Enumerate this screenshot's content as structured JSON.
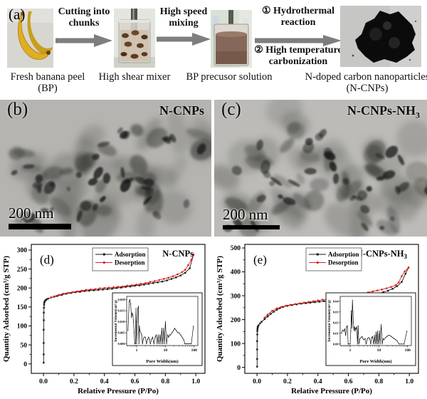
{
  "panel_a": {
    "label": "(a)",
    "arrow_color": "#7e7e7e",
    "steps": [
      {
        "caption": "Fresh banana peel (BP)",
        "image": "banana-photo"
      },
      {
        "caption": "High shear mixer",
        "image": "shear-mixer-photo"
      },
      {
        "caption": "BP precusor solution",
        "image": "precursor-solution-photo"
      },
      {
        "caption": "N-doped carbon nanoparticles (N-CNPs)",
        "image": "carbon-powder-photo"
      }
    ],
    "arrows": [
      {
        "label": "Cutting into chunks"
      },
      {
        "label": "High speed mixing"
      },
      {
        "label_top": "① Hydrothermal reaction",
        "label_bottom": "② High temperature carbonization"
      }
    ]
  },
  "panel_b": {
    "label": "(b)",
    "sample_main": "N-CNPs",
    "sample_sub": "",
    "scale_bar": "200 nm"
  },
  "panel_c": {
    "label": "(c)",
    "sample_main": "N-CNPs-NH",
    "sample_sub": "3",
    "scale_bar": "200 nm"
  },
  "chart_data": [
    {
      "type": "line",
      "panel": "(d)",
      "sample": "N-CNPs",
      "sample_sub": "",
      "xlabel": "Relative Pressure (P/Po)",
      "ylabel": "Quantity Adsorbed (cm³/g STP)",
      "xlim": [
        -0.08,
        1.06
      ],
      "ylim": [
        -25,
        315
      ],
      "xticks": [
        0.0,
        0.2,
        0.4,
        0.6,
        0.8,
        1.0
      ],
      "xtick_labels": [
        "0.0",
        "0.2",
        "0.4",
        "0.6",
        "0.8",
        "1.0"
      ],
      "yticks": [
        0,
        50,
        100,
        150,
        200,
        250,
        300
      ],
      "ytick_labels": [
        "0",
        "50",
        "100",
        "150",
        "200",
        "250",
        "300"
      ],
      "legend_position": "top-center",
      "grid": false,
      "series": [
        {
          "name": "Adsorption",
          "color": "#1a1a1a",
          "marker": "square",
          "x": [
            0.001,
            0.001,
            0.001,
            0.001,
            0.002,
            0.002,
            0.003,
            0.004,
            0.005,
            0.007,
            0.01,
            0.015,
            0.02,
            0.03,
            0.05,
            0.07,
            0.09,
            0.12,
            0.15,
            0.18,
            0.21,
            0.24,
            0.27,
            0.3,
            0.33,
            0.36,
            0.39,
            0.42,
            0.45,
            0.48,
            0.51,
            0.54,
            0.57,
            0.6,
            0.63,
            0.66,
            0.69,
            0.72,
            0.75,
            0.78,
            0.81,
            0.84,
            0.87,
            0.9,
            0.93,
            0.96,
            0.985
          ],
          "y": [
            3,
            25,
            55,
            90,
            115,
            135,
            148,
            156,
            161,
            164,
            166,
            168,
            170,
            172,
            175,
            177,
            179,
            182,
            185,
            187,
            189,
            190,
            192,
            193,
            194,
            195,
            196,
            197,
            198,
            200,
            201,
            203,
            204,
            206,
            207,
            209,
            211,
            213,
            215,
            217,
            220,
            224,
            228,
            233,
            240,
            252,
            288
          ]
        },
        {
          "name": "Desorption",
          "color": "#dd2222",
          "marker": "circle",
          "x": [
            0.985,
            0.97,
            0.95,
            0.93,
            0.91,
            0.88,
            0.85,
            0.82,
            0.79,
            0.76,
            0.73,
            0.7,
            0.67,
            0.64,
            0.61,
            0.58,
            0.55,
            0.52,
            0.49,
            0.46,
            0.43,
            0.4,
            0.37,
            0.34,
            0.31,
            0.28,
            0.25,
            0.22,
            0.19,
            0.16,
            0.13,
            0.1,
            0.07,
            0.05
          ],
          "y": [
            288,
            274,
            260,
            248,
            242,
            236,
            231,
            227,
            224,
            221,
            218,
            216,
            213,
            211,
            209,
            207,
            206,
            204,
            203,
            202,
            201,
            200,
            199,
            197,
            196,
            195,
            193,
            191,
            189,
            187,
            185,
            182,
            178,
            175
          ]
        }
      ],
      "inset": {
        "xlabel": "Pore Width(nm)",
        "ylabel": "Incremental Volume(cm³/g)",
        "xscale": "log",
        "xlim": [
          0.45,
          135
        ],
        "ylim": [
          -0.0008,
          0.0215
        ],
        "xticks": [
          1,
          10,
          100
        ],
        "xtick_labels": [
          "1",
          "10",
          "100"
        ],
        "yticks": [
          0,
          0.005,
          0.01,
          0.015,
          0.02
        ],
        "ytick_labels": [
          "0.000",
          "0.005",
          "0.010",
          "0.015",
          "0.020"
        ],
        "x": [
          0.5,
          0.55,
          0.58,
          0.62,
          0.66,
          0.7,
          0.74,
          0.78,
          0.82,
          0.86,
          0.9,
          0.95,
          1.0,
          1.05,
          1.1,
          1.15,
          1.2,
          1.25,
          1.3,
          1.4,
          1.5,
          1.6,
          1.7,
          1.8,
          2.0,
          2.2,
          2.4,
          2.6,
          2.8,
          3.0,
          3.3,
          3.6,
          4.0,
          4.4,
          4.8,
          5.2,
          5.6,
          6.0,
          6.5,
          7.0,
          7.5,
          8.0,
          8.6,
          9.2,
          10,
          11,
          12,
          13,
          14,
          15,
          17,
          19,
          21,
          24,
          27,
          30,
          34,
          38,
          43,
          48,
          55,
          65,
          80,
          95
        ],
        "y": [
          0.006,
          0.019,
          0.02,
          0.018,
          0.012,
          0.014,
          0.013,
          0.01,
          0.005,
          0,
          0,
          0.016,
          0,
          0.01,
          0.016,
          0.017,
          0,
          0.008,
          0.006,
          0.005,
          0.004,
          0,
          0.002,
          0.003,
          0.003,
          0,
          0.002,
          0.003,
          0.002,
          0,
          0.002,
          0.003,
          0,
          0.003,
          0.004,
          0,
          0.004,
          0,
          0.004,
          0,
          0.007,
          0,
          0.007,
          0,
          0.01,
          0,
          0.004,
          0.003,
          0.004,
          0.004,
          0.005,
          0.006,
          0.007,
          0.006,
          0.005,
          0.005,
          0.004,
          0.003,
          0.002,
          0,
          0,
          0,
          0,
          0.008
        ]
      }
    },
    {
      "type": "line",
      "panel": "(e)",
      "sample": "N-CNPs-NH",
      "sample_sub": "3",
      "xlabel": "Relative Pressure (P/Po)",
      "ylabel": "Quantity Adsorbed (cm³/g STP)",
      "xlim": [
        -0.08,
        1.06
      ],
      "ylim": [
        -25,
        515
      ],
      "xticks": [
        0.0,
        0.2,
        0.4,
        0.6,
        0.8,
        1.0
      ],
      "xtick_labels": [
        "0.0",
        "0.2",
        "0.4",
        "0.6",
        "0.8",
        "1.0"
      ],
      "yticks": [
        0,
        100,
        200,
        300,
        400,
        500
      ],
      "ytick_labels": [
        "0",
        "100",
        "200",
        "300",
        "400",
        "500"
      ],
      "legend_position": "top-center",
      "grid": false,
      "series": [
        {
          "name": "Adsorption",
          "color": "#1a1a1a",
          "marker": "square",
          "x": [
            0.001,
            0.001,
            0.001,
            0.001,
            0.002,
            0.002,
            0.003,
            0.004,
            0.005,
            0.007,
            0.01,
            0.02,
            0.03,
            0.05,
            0.07,
            0.09,
            0.11,
            0.13,
            0.15,
            0.17,
            0.2,
            0.23,
            0.26,
            0.29,
            0.32,
            0.35,
            0.38,
            0.41,
            0.44,
            0.47,
            0.5,
            0.53,
            0.56,
            0.59,
            0.62,
            0.65,
            0.68,
            0.71,
            0.74,
            0.77,
            0.8,
            0.83,
            0.86,
            0.89,
            0.92,
            0.95,
            0.975,
            0.995
          ],
          "y": [
            3,
            35,
            75,
            110,
            138,
            152,
            160,
            165,
            169,
            172,
            176,
            184,
            191,
            202,
            213,
            224,
            233,
            241,
            248,
            253,
            258,
            261,
            264,
            267,
            269,
            271,
            273,
            275,
            277,
            279,
            281,
            284,
            286,
            288,
            291,
            293,
            296,
            299,
            302,
            306,
            310,
            315,
            321,
            329,
            340,
            358,
            392,
            418
          ]
        },
        {
          "name": "Desorption",
          "color": "#dd2222",
          "marker": "circle",
          "x": [
            0.995,
            0.97,
            0.95,
            0.93,
            0.91,
            0.88,
            0.85,
            0.82,
            0.79,
            0.76,
            0.73,
            0.7,
            0.67,
            0.64,
            0.61,
            0.58,
            0.55,
            0.52,
            0.49,
            0.46,
            0.43,
            0.4,
            0.37,
            0.34,
            0.31,
            0.28,
            0.25,
            0.22,
            0.19,
            0.16,
            0.13,
            0.1,
            0.07,
            0.05
          ],
          "y": [
            418,
            402,
            382,
            356,
            344,
            337,
            331,
            326,
            322,
            318,
            314,
            310,
            307,
            304,
            301,
            298,
            295,
            292,
            289,
            286,
            283,
            280,
            277,
            274,
            271,
            268,
            265,
            262,
            258,
            253,
            247,
            237,
            221,
            208
          ]
        }
      ],
      "inset": {
        "xlabel": "Pore Width(nm)",
        "ylabel": "Incremental Volume(cm³/g)",
        "xscale": "log",
        "xlim": [
          0.45,
          135
        ],
        "ylim": [
          -0.0015,
          0.0445
        ],
        "xticks": [
          1,
          10,
          100
        ],
        "xtick_labels": [
          "1",
          "10",
          "100"
        ],
        "yticks": [
          0,
          0.01,
          0.02,
          0.03,
          0.04
        ],
        "ytick_labels": [
          "0.00",
          "0.01",
          "0.02",
          "0.03",
          "0.04"
        ],
        "x": [
          0.5,
          0.55,
          0.6,
          0.65,
          0.7,
          0.75,
          0.8,
          0.85,
          0.9,
          1.0,
          1.05,
          1.1,
          1.15,
          1.2,
          1.25,
          1.3,
          1.35,
          1.4,
          1.5,
          1.55,
          1.6,
          1.7,
          1.8,
          1.9,
          2.0,
          2.2,
          2.4,
          2.6,
          2.8,
          3.0,
          3.3,
          3.6,
          4.0,
          4.4,
          4.8,
          5.2,
          5.6,
          6.0,
          6.5,
          7.0,
          7.5,
          8.0,
          8.5,
          9.0,
          9.5,
          10.5,
          11,
          12,
          13,
          14,
          15,
          17,
          19,
          21,
          24,
          27,
          30,
          34,
          38,
          43,
          50,
          60,
          75,
          95
        ],
        "y": [
          0.01,
          0.013,
          0.012,
          0.014,
          0.008,
          0.016,
          0.017,
          0,
          0,
          0,
          0.012,
          0.031,
          0.015,
          0.041,
          0.03,
          0.02,
          0.013,
          0.016,
          0.012,
          0.015,
          0.014,
          0.016,
          0,
          0.017,
          0,
          0.005,
          0.006,
          0.007,
          0.005,
          0.004,
          0.005,
          0,
          0.005,
          0.006,
          0.005,
          0,
          0.006,
          0.007,
          0,
          0.008,
          0,
          0.011,
          0,
          0.012,
          0,
          0.012,
          0,
          0.018,
          0,
          0.005,
          0.004,
          0.006,
          0.007,
          0.008,
          0.008,
          0.007,
          0.006,
          0.005,
          0.004,
          0.003,
          0,
          0,
          0,
          0.012
        ]
      }
    }
  ]
}
